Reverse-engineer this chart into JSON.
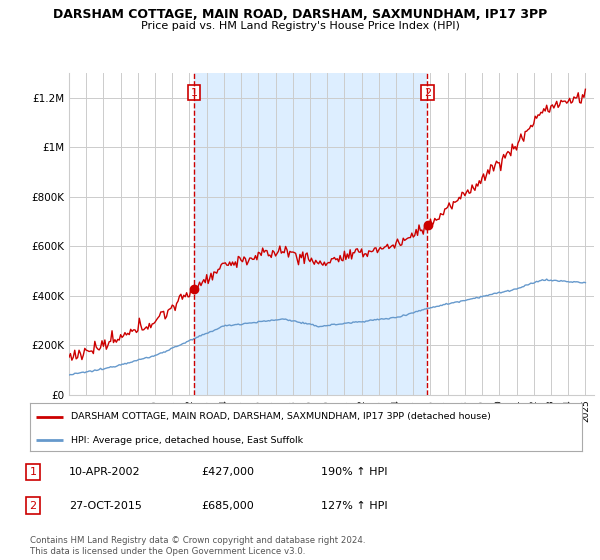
{
  "title": "DARSHAM COTTAGE, MAIN ROAD, DARSHAM, SAXMUNDHAM, IP17 3PP",
  "subtitle": "Price paid vs. HM Land Registry's House Price Index (HPI)",
  "legend_label_red": "DARSHAM COTTAGE, MAIN ROAD, DARSHAM, SAXMUNDHAM, IP17 3PP (detached house)",
  "legend_label_blue": "HPI: Average price, detached house, East Suffolk",
  "transaction1_label": "1",
  "transaction1_date": "10-APR-2002",
  "transaction1_price": "£427,000",
  "transaction1_hpi": "190% ↑ HPI",
  "transaction2_label": "2",
  "transaction2_date": "27-OCT-2015",
  "transaction2_price": "£685,000",
  "transaction2_hpi": "127% ↑ HPI",
  "footer": "Contains HM Land Registry data © Crown copyright and database right 2024.\nThis data is licensed under the Open Government Licence v3.0.",
  "ylim": [
    0,
    1300000
  ],
  "yticks": [
    0,
    200000,
    400000,
    600000,
    800000,
    1000000,
    1200000
  ],
  "ytick_labels": [
    "£0",
    "£200K",
    "£400K",
    "£600K",
    "£800K",
    "£1M",
    "£1.2M"
  ],
  "vline1_year": 2002.27,
  "vline2_year": 2015.82,
  "marker1_price": 427000,
  "marker2_price": 685000,
  "red_color": "#cc0000",
  "blue_color": "#6699cc",
  "blue_fill_color": "#ddeeff",
  "vline_color": "#cc0000",
  "bg_color": "#ffffff",
  "grid_color": "#cccccc",
  "title_fontsize": 9,
  "subtitle_fontsize": 8
}
